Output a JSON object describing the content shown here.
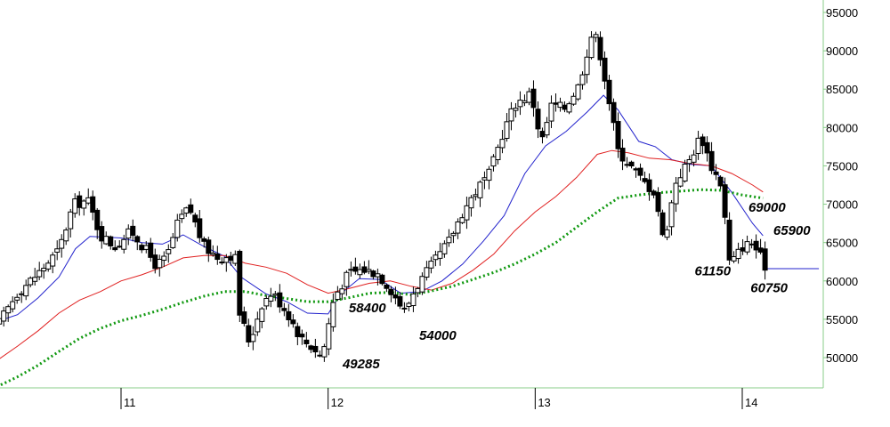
{
  "chart_data": {
    "type": "candlestick",
    "x_axis": {
      "ticks": [
        {
          "label": "11",
          "value": 11
        },
        {
          "label": "12",
          "value": 12
        },
        {
          "label": "13",
          "value": 13
        },
        {
          "label": "14",
          "value": 14
        }
      ],
      "range": [
        10.4,
        14.37
      ]
    },
    "y_axis": {
      "position": "right",
      "range": [
        45500,
        96500
      ],
      "ticks": [
        50000,
        55000,
        60000,
        65000,
        70000,
        75000,
        80000,
        85000,
        90000,
        95000
      ],
      "tick_labels": [
        "50000",
        "55000",
        "60000",
        "65000",
        "70000",
        "75000",
        "80000",
        "85000",
        "90000",
        "95000"
      ]
    },
    "grid": false,
    "colors": {
      "background": "#ffffff",
      "axis": "#88cc88",
      "candle": "#000000",
      "up_fill": "#ffffff",
      "down_fill": "#000000",
      "ma_short": "#2222cc",
      "ma_mid": "#e02020",
      "ma_long": "#119911",
      "last_price_line": "#2222cc"
    },
    "close_path": [
      [
        10.4,
        54000
      ],
      [
        10.5,
        58500
      ],
      [
        10.6,
        61000
      ],
      [
        10.7,
        64000
      ],
      [
        10.77,
        70000
      ],
      [
        10.84,
        70500
      ],
      [
        10.9,
        66000
      ],
      [
        10.97,
        64500
      ],
      [
        11.05,
        66500
      ],
      [
        11.12,
        64000
      ],
      [
        11.17,
        62000
      ],
      [
        11.22,
        63000
      ],
      [
        11.28,
        68000
      ],
      [
        11.33,
        69500
      ],
      [
        11.4,
        64500
      ],
      [
        11.47,
        63000
      ],
      [
        11.55,
        63500
      ],
      [
        11.57,
        56000
      ],
      [
        11.62,
        52000
      ],
      [
        11.68,
        57000
      ],
      [
        11.73,
        58500
      ],
      [
        11.8,
        56000
      ],
      [
        11.87,
        52500
      ],
      [
        11.94,
        51000
      ],
      [
        11.97,
        50000
      ],
      [
        12.03,
        58000
      ],
      [
        12.1,
        61000
      ],
      [
        12.17,
        61500
      ],
      [
        12.24,
        61000
      ],
      [
        12.3,
        59000
      ],
      [
        12.37,
        56000
      ],
      [
        12.42,
        59000
      ],
      [
        12.5,
        62000
      ],
      [
        12.58,
        65000
      ],
      [
        12.65,
        69000
      ],
      [
        12.72,
        72000
      ],
      [
        12.78,
        74000
      ],
      [
        12.84,
        79000
      ],
      [
        12.9,
        83000
      ],
      [
        12.98,
        84500
      ],
      [
        13.03,
        78000
      ],
      [
        13.08,
        83000
      ],
      [
        13.14,
        82500
      ],
      [
        13.21,
        85500
      ],
      [
        13.27,
        92000
      ],
      [
        13.3,
        91500
      ],
      [
        13.34,
        86000
      ],
      [
        13.4,
        77000
      ],
      [
        13.46,
        75000
      ],
      [
        13.52,
        73000
      ],
      [
        13.58,
        71500
      ],
      [
        13.62,
        65000
      ],
      [
        13.68,
        73000
      ],
      [
        13.75,
        76000
      ],
      [
        13.8,
        79000
      ],
      [
        13.85,
        75000
      ],
      [
        13.9,
        72500
      ],
      [
        13.94,
        62000
      ],
      [
        14.0,
        64500
      ],
      [
        14.05,
        65000
      ],
      [
        14.11,
        62000
      ]
    ],
    "moving_averages": [
      {
        "key": "ma_short",
        "style": "solid",
        "points": [
          [
            10.4,
            54700
          ],
          [
            10.5,
            55600
          ],
          [
            10.6,
            57800
          ],
          [
            10.7,
            60500
          ],
          [
            10.78,
            64200
          ],
          [
            10.85,
            65800
          ],
          [
            11.0,
            65600
          ],
          [
            11.1,
            65000
          ],
          [
            11.2,
            64800
          ],
          [
            11.3,
            66000
          ],
          [
            11.4,
            64500
          ],
          [
            11.5,
            63200
          ],
          [
            11.58,
            60500
          ],
          [
            11.7,
            58300
          ],
          [
            11.8,
            57300
          ],
          [
            11.9,
            55800
          ],
          [
            12.0,
            55700
          ],
          [
            12.06,
            58300
          ],
          [
            12.15,
            60300
          ],
          [
            12.25,
            60200
          ],
          [
            12.35,
            58400
          ],
          [
            12.45,
            58600
          ],
          [
            12.55,
            60000
          ],
          [
            12.65,
            62200
          ],
          [
            12.75,
            65200
          ],
          [
            12.85,
            68500
          ],
          [
            12.95,
            74000
          ],
          [
            13.05,
            77600
          ],
          [
            13.15,
            79500
          ],
          [
            13.25,
            82000
          ],
          [
            13.33,
            84200
          ],
          [
            13.4,
            82300
          ],
          [
            13.5,
            78200
          ],
          [
            13.58,
            77500
          ],
          [
            13.66,
            75800
          ],
          [
            13.75,
            75200
          ],
          [
            13.85,
            75000
          ],
          [
            13.95,
            71500
          ],
          [
            14.05,
            67500
          ],
          [
            14.1,
            65900
          ]
        ]
      },
      {
        "key": "ma_mid",
        "style": "solid",
        "points": [
          [
            10.4,
            49600
          ],
          [
            10.5,
            51500
          ],
          [
            10.6,
            53500
          ],
          [
            10.7,
            55800
          ],
          [
            10.8,
            57500
          ],
          [
            10.9,
            58600
          ],
          [
            11.0,
            60000
          ],
          [
            11.1,
            60800
          ],
          [
            11.2,
            61800
          ],
          [
            11.3,
            63000
          ],
          [
            11.4,
            63300
          ],
          [
            11.5,
            63300
          ],
          [
            11.6,
            62300
          ],
          [
            11.7,
            61800
          ],
          [
            11.8,
            61000
          ],
          [
            11.9,
            59500
          ],
          [
            12.0,
            58400
          ],
          [
            12.1,
            59000
          ],
          [
            12.2,
            59700
          ],
          [
            12.3,
            60000
          ],
          [
            12.4,
            59300
          ],
          [
            12.5,
            58800
          ],
          [
            12.6,
            59700
          ],
          [
            12.7,
            61400
          ],
          [
            12.8,
            63500
          ],
          [
            12.9,
            66500
          ],
          [
            13.0,
            69000
          ],
          [
            13.1,
            71000
          ],
          [
            13.2,
            73500
          ],
          [
            13.3,
            76500
          ],
          [
            13.37,
            77000
          ],
          [
            13.45,
            76700
          ],
          [
            13.55,
            76000
          ],
          [
            13.65,
            75800
          ],
          [
            13.75,
            75300
          ],
          [
            13.85,
            75000
          ],
          [
            13.95,
            74000
          ],
          [
            14.05,
            72500
          ],
          [
            14.1,
            71600
          ]
        ]
      },
      {
        "key": "ma_long",
        "style": "dotted",
        "points": [
          [
            10.4,
            46200
          ],
          [
            10.5,
            47500
          ],
          [
            10.6,
            49000
          ],
          [
            10.7,
            50800
          ],
          [
            10.8,
            52500
          ],
          [
            10.9,
            53800
          ],
          [
            11.0,
            54800
          ],
          [
            11.1,
            55500
          ],
          [
            11.2,
            56300
          ],
          [
            11.3,
            57200
          ],
          [
            11.4,
            58000
          ],
          [
            11.5,
            58600
          ],
          [
            11.6,
            58600
          ],
          [
            11.7,
            58100
          ],
          [
            11.8,
            57700
          ],
          [
            11.9,
            57300
          ],
          [
            12.0,
            57300
          ],
          [
            12.1,
            57800
          ],
          [
            12.2,
            58400
          ],
          [
            12.3,
            58500
          ],
          [
            12.4,
            58200
          ],
          [
            12.5,
            58700
          ],
          [
            12.6,
            59300
          ],
          [
            12.7,
            60200
          ],
          [
            12.8,
            61100
          ],
          [
            12.9,
            62200
          ],
          [
            13.0,
            63500
          ],
          [
            13.1,
            65000
          ],
          [
            13.2,
            67000
          ],
          [
            13.3,
            69000
          ],
          [
            13.4,
            70800
          ],
          [
            13.5,
            71200
          ],
          [
            13.6,
            71500
          ],
          [
            13.7,
            71700
          ],
          [
            13.8,
            71900
          ],
          [
            13.9,
            71800
          ],
          [
            14.0,
            71200
          ],
          [
            14.1,
            70800
          ]
        ]
      }
    ],
    "last_price": {
      "value": 61600,
      "from": 14.11,
      "to": 14.37
    },
    "annotations": [
      {
        "text": "58400",
        "x": 12.1,
        "y": 55900
      },
      {
        "text": "49285",
        "x": 12.07,
        "y": 48600
      },
      {
        "text": "54000",
        "x": 12.44,
        "y": 52300
      },
      {
        "text": "69000",
        "x": 14.03,
        "y": 69000
      },
      {
        "text": "65900",
        "x": 14.15,
        "y": 66000
      },
      {
        "text": "61150",
        "x": 13.77,
        "y": 60700
      },
      {
        "text": "60750",
        "x": 14.04,
        "y": 58500
      }
    ]
  }
}
